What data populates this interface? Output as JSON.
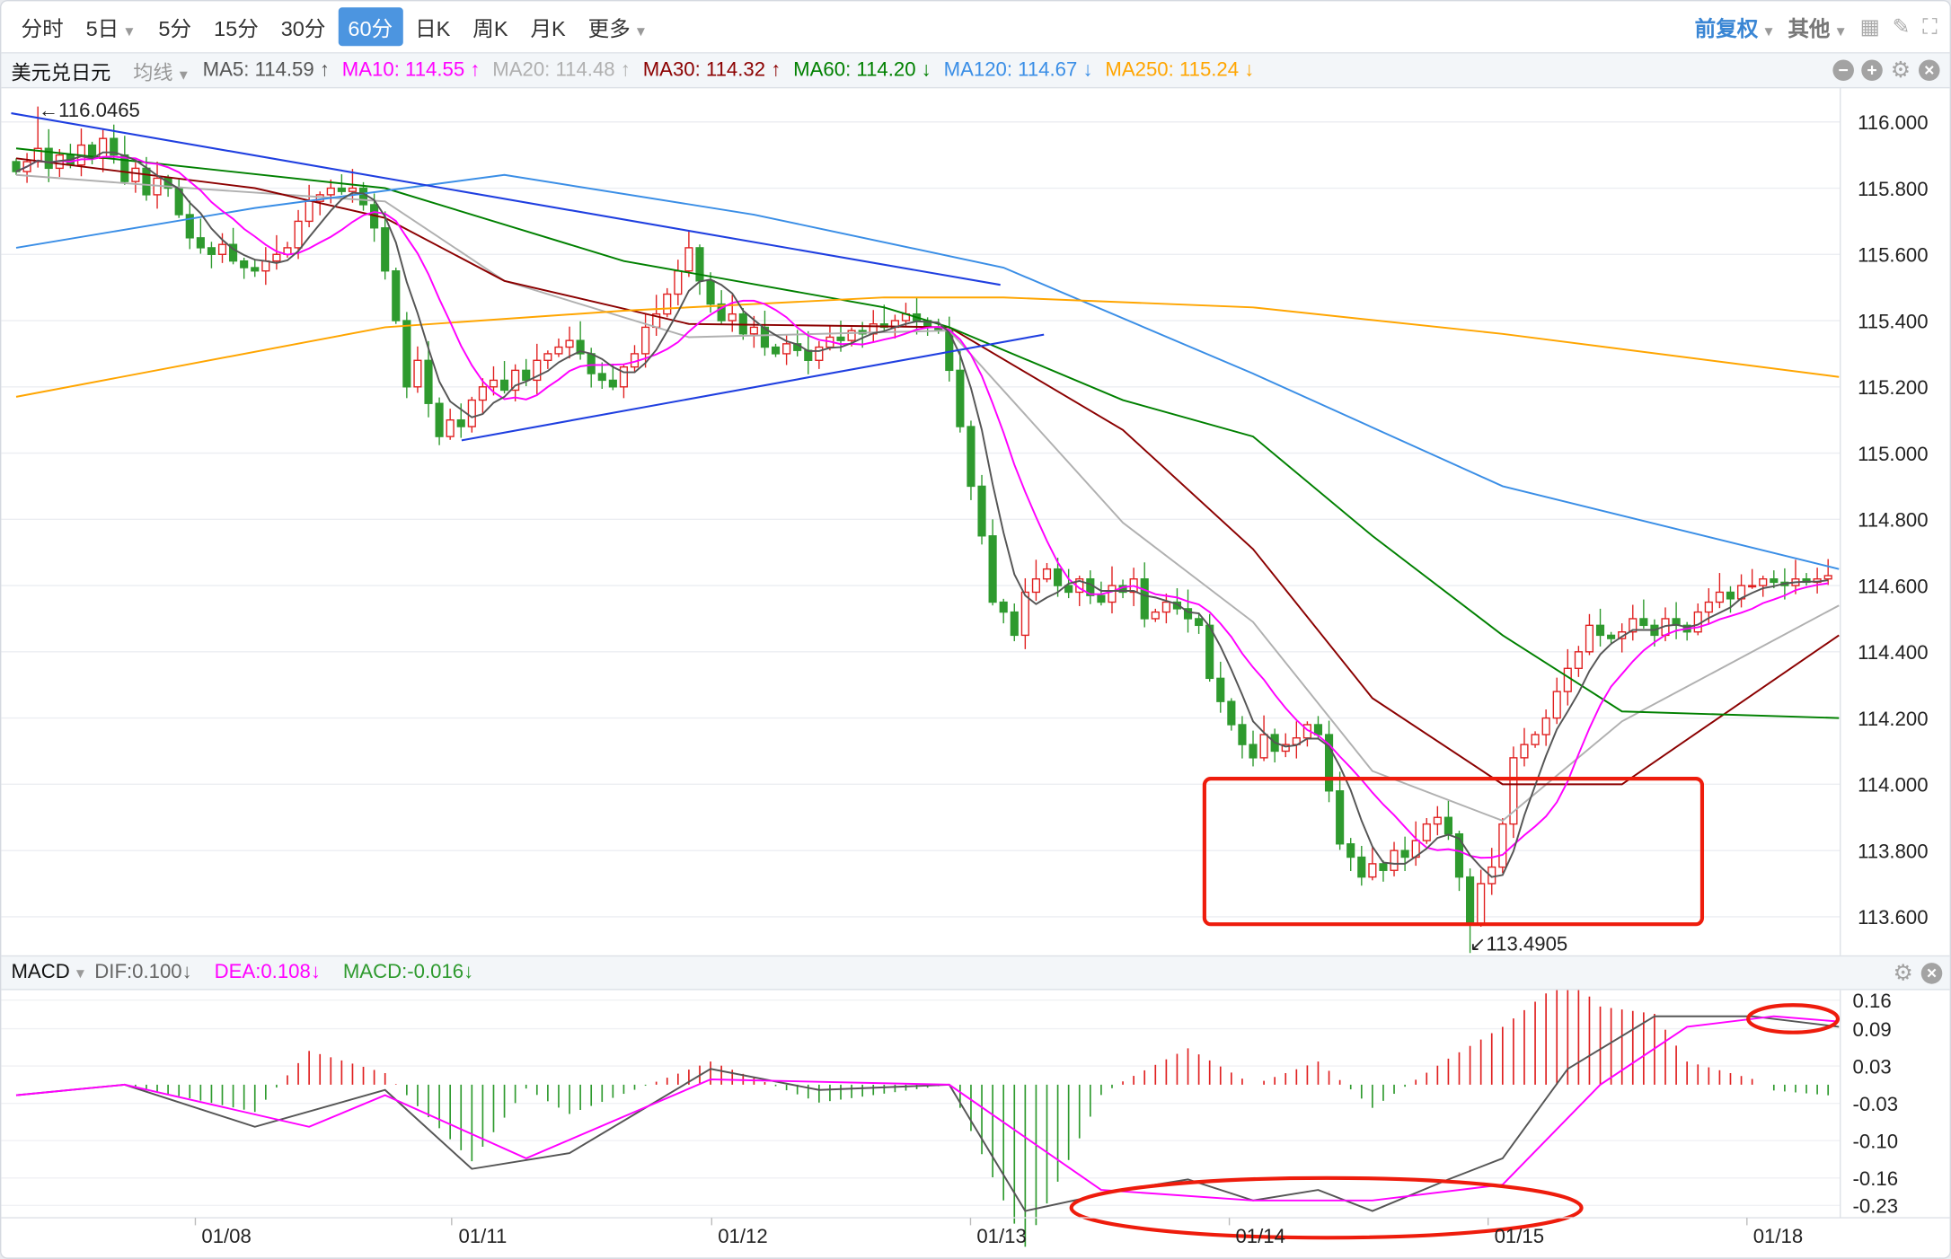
{
  "toolbar": {
    "periods": [
      "分时",
      "5日",
      "5分",
      "15分",
      "30分",
      "60分",
      "日K",
      "周K",
      "月K",
      "更多"
    ],
    "active": "60分",
    "adjust": "前复权",
    "other": "其他"
  },
  "symbol": "美元兑日元",
  "ma_selector": "均线",
  "ma_legend": [
    {
      "label": "MA5: 114.59",
      "arrow": "↑",
      "color": "#555555"
    },
    {
      "label": "MA10: 114.55",
      "arrow": "↑",
      "color": "#ff00ff"
    },
    {
      "label": "MA20: 114.48",
      "arrow": "↑",
      "color": "#b0b0b0"
    },
    {
      "label": "MA30: 114.32",
      "arrow": "↑",
      "color": "#8b0000"
    },
    {
      "label": "MA60: 114.20",
      "arrow": "↓",
      "color": "#008000"
    },
    {
      "label": "MA120: 114.67",
      "arrow": "↓",
      "color": "#3a8ee6"
    },
    {
      "label": "MA250: 115.24",
      "arrow": "↓",
      "color": "#ffa500"
    }
  ],
  "macd_legend": {
    "name": "MACD",
    "dif": "DIF:0.100↓",
    "dea": "DEA:0.108↓",
    "macd": "MACD:-0.016↓"
  },
  "chart_data": [
    {
      "type": "candlestick",
      "y_ticks": [
        "116.000",
        "115.800",
        "115.600",
        "115.400",
        "115.200",
        "115.000",
        "114.800",
        "114.600",
        "114.400",
        "114.200",
        "114.000",
        "113.800",
        "113.600"
      ],
      "x_ticks": [
        "01/08",
        "01/11",
        "01/12",
        "01/13",
        "01/14",
        "01/15",
        "01/18"
      ],
      "high_label": "116.0465",
      "low_label": "113.4905",
      "high": 116.0465,
      "low": 113.4905,
      "closes": [
        115.85,
        115.88,
        115.92,
        115.86,
        115.9,
        115.87,
        115.93,
        115.89,
        115.95,
        115.9,
        115.82,
        115.86,
        115.78,
        115.83,
        115.8,
        115.72,
        115.65,
        115.62,
        115.6,
        115.63,
        115.58,
        115.56,
        115.55,
        115.58,
        115.6,
        115.62,
        115.7,
        115.76,
        115.78,
        115.8,
        115.79,
        115.8,
        115.75,
        115.68,
        115.55,
        115.4,
        115.2,
        115.28,
        115.15,
        115.05,
        115.1,
        115.08,
        115.16,
        115.2,
        115.22,
        115.19,
        115.25,
        115.22,
        115.28,
        115.3,
        115.32,
        115.34,
        115.3,
        115.24,
        115.22,
        115.2,
        115.26,
        115.3,
        115.38,
        115.42,
        115.48,
        115.55,
        115.62,
        115.52,
        115.45,
        115.4,
        115.42,
        115.36,
        115.38,
        115.32,
        115.3,
        115.33,
        115.31,
        115.28,
        115.32,
        115.35,
        115.34,
        115.37,
        115.36,
        115.39,
        115.38,
        115.4,
        115.42,
        115.4,
        115.38,
        115.37,
        115.25,
        115.08,
        114.9,
        114.75,
        114.55,
        114.52,
        114.45,
        114.58,
        114.62,
        114.65,
        114.6,
        114.58,
        114.62,
        114.57,
        114.55,
        114.6,
        114.58,
        114.62,
        114.5,
        114.52,
        114.55,
        114.53,
        114.5,
        114.48,
        114.32,
        114.25,
        114.18,
        114.12,
        114.08,
        114.15,
        114.1,
        114.12,
        114.14,
        114.18,
        114.15,
        113.98,
        113.82,
        113.78,
        113.72,
        113.76,
        113.74,
        113.8,
        113.78,
        113.83,
        113.88,
        113.9,
        113.85,
        113.72,
        113.58,
        113.7,
        113.75,
        113.88,
        114.08,
        114.12,
        114.15,
        114.2,
        114.28,
        114.35,
        114.4,
        114.48,
        114.45,
        114.44,
        114.46,
        114.5,
        114.48,
        114.45,
        114.5,
        114.48,
        114.46,
        114.52,
        114.55,
        114.58,
        114.56,
        114.6,
        114.6,
        114.62,
        114.61,
        114.6,
        114.62,
        114.61,
        114.62,
        114.63
      ],
      "ma_series": [
        {
          "name": "MA20",
          "color": "#b0b0b0",
          "points": [
            [
              0,
              115.84
            ],
            [
              16,
              115.8
            ],
            [
              34,
              115.76
            ],
            [
              45,
              115.52
            ],
            [
              62,
              115.35
            ],
            [
              86,
              115.37
            ],
            [
              102,
              114.79
            ],
            [
              114,
              114.49
            ],
            [
              125,
              114.04
            ],
            [
              137,
              113.89
            ],
            [
              148,
              114.19
            ],
            [
              168,
              114.54
            ]
          ]
        },
        {
          "name": "MA30",
          "color": "#8b0000",
          "points": [
            [
              0,
              115.89
            ],
            [
              22,
              115.8
            ],
            [
              34,
              115.71
            ],
            [
              45,
              115.52
            ],
            [
              62,
              115.39
            ],
            [
              86,
              115.38
            ],
            [
              102,
              115.07
            ],
            [
              114,
              114.71
            ],
            [
              125,
              114.26
            ],
            [
              137,
              114.0
            ],
            [
              148,
              114.0
            ],
            [
              168,
              114.45
            ]
          ]
        },
        {
          "name": "MA60",
          "color": "#008000",
          "points": [
            [
              0,
              115.92
            ],
            [
              34,
              115.8
            ],
            [
              56,
              115.58
            ],
            [
              80,
              115.44
            ],
            [
              86,
              115.38
            ],
            [
              102,
              115.16
            ],
            [
              114,
              115.05
            ],
            [
              125,
              114.75
            ],
            [
              137,
              114.45
            ],
            [
              148,
              114.22
            ],
            [
              168,
              114.2
            ]
          ]
        },
        {
          "name": "MA120",
          "color": "#3a8ee6",
          "points": [
            [
              0,
              115.62
            ],
            [
              22,
              115.74
            ],
            [
              45,
              115.84
            ],
            [
              68,
              115.72
            ],
            [
              91,
              115.56
            ],
            [
              114,
              115.24
            ],
            [
              137,
              114.9
            ],
            [
              168,
              114.65
            ]
          ]
        },
        {
          "name": "MA250",
          "color": "#ffa500",
          "points": [
            [
              0,
              115.17
            ],
            [
              34,
              115.38
            ],
            [
              56,
              115.43
            ],
            [
              80,
              115.47
            ],
            [
              91,
              115.47
            ],
            [
              114,
              115.44
            ],
            [
              137,
              115.36
            ],
            [
              168,
              115.23
            ]
          ]
        }
      ]
    },
    {
      "type": "line",
      "y_ticks": [
        "0.16",
        "0.09",
        "0.03",
        "-0.03",
        "-0.10",
        "-0.16",
        "-0.23"
      ],
      "series": [
        {
          "name": "DIF",
          "color": "#555555",
          "points": [
            [
              0,
              -0.02
            ],
            [
              10,
              0
            ],
            [
              22,
              -0.08
            ],
            [
              34,
              -0.01
            ],
            [
              42,
              -0.16
            ],
            [
              51,
              -0.13
            ],
            [
              64,
              0.03
            ],
            [
              74,
              -0.01
            ],
            [
              86,
              0
            ],
            [
              93,
              -0.24
            ],
            [
              102,
              -0.2
            ],
            [
              108,
              -0.18
            ],
            [
              114,
              -0.22
            ],
            [
              120,
              -0.2
            ],
            [
              125,
              -0.24
            ],
            [
              132,
              -0.18
            ],
            [
              137,
              -0.14
            ],
            [
              143,
              0.03
            ],
            [
              151,
              0.13
            ],
            [
              160,
              0.13
            ],
            [
              168,
              0.11
            ]
          ]
        },
        {
          "name": "DEA",
          "color": "#ff00ff",
          "points": [
            [
              0,
              -0.02
            ],
            [
              10,
              0
            ],
            [
              27,
              -0.08
            ],
            [
              34,
              -0.02
            ],
            [
              47,
              -0.14
            ],
            [
              64,
              0.01
            ],
            [
              86,
              0
            ],
            [
              100,
              -0.2
            ],
            [
              114,
              -0.22
            ],
            [
              125,
              -0.22
            ],
            [
              137,
              -0.19
            ],
            [
              146,
              0
            ],
            [
              154,
              0.11
            ],
            [
              162,
              0.13
            ],
            [
              168,
              0.12
            ]
          ]
        }
      ]
    }
  ]
}
